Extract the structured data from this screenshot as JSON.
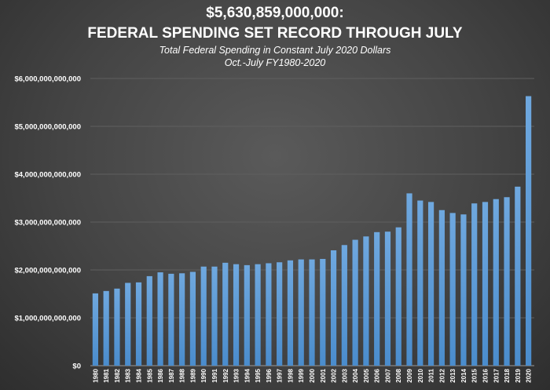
{
  "chart_data": {
    "type": "bar",
    "title": "$5,630,859,000,000:",
    "title_line2": "FEDERAL SPENDING SET RECORD THROUGH JULY",
    "subtitle": "Total Federal Spending in Constant July 2020 Dollars",
    "subtitle_line2": "Oct.-July FY1980-2020",
    "xlabel": "",
    "ylabel": "",
    "ylim": [
      0,
      6000000000000
    ],
    "yticks": [
      "$0",
      "$1,000,000,000,000",
      "$2,000,000,000,000",
      "$3,000,000,000,000",
      "$4,000,000,000,000",
      "$5,000,000,000,000",
      "$6,000,000,000,000"
    ],
    "grid": true,
    "bar_color": "#5b9bd5",
    "categories": [
      "1980",
      "1981",
      "1982",
      "1983",
      "1984",
      "1985",
      "1986",
      "1987",
      "1988",
      "1989",
      "1990",
      "1991",
      "1992",
      "1993",
      "1994",
      "1995",
      "1996",
      "1997",
      "1998",
      "1999",
      "2000",
      "2001",
      "2002",
      "2003",
      "2004",
      "2005",
      "2006",
      "2007",
      "2008",
      "2009",
      "2010",
      "2011",
      "2012",
      "2013",
      "2014",
      "2015",
      "2016",
      "2017",
      "2018",
      "2019",
      "2020"
    ],
    "values": [
      1510000000000,
      1560000000000,
      1610000000000,
      1730000000000,
      1740000000000,
      1870000000000,
      1950000000000,
      1920000000000,
      1930000000000,
      1960000000000,
      2070000000000,
      2070000000000,
      2150000000000,
      2120000000000,
      2100000000000,
      2120000000000,
      2140000000000,
      2160000000000,
      2200000000000,
      2220000000000,
      2220000000000,
      2230000000000,
      2410000000000,
      2520000000000,
      2630000000000,
      2700000000000,
      2790000000000,
      2800000000000,
      2890000000000,
      3600000000000,
      3450000000000,
      3420000000000,
      3250000000000,
      3190000000000,
      3160000000000,
      3390000000000,
      3420000000000,
      3480000000000,
      3520000000000,
      3740000000000,
      5630859000000
    ]
  }
}
